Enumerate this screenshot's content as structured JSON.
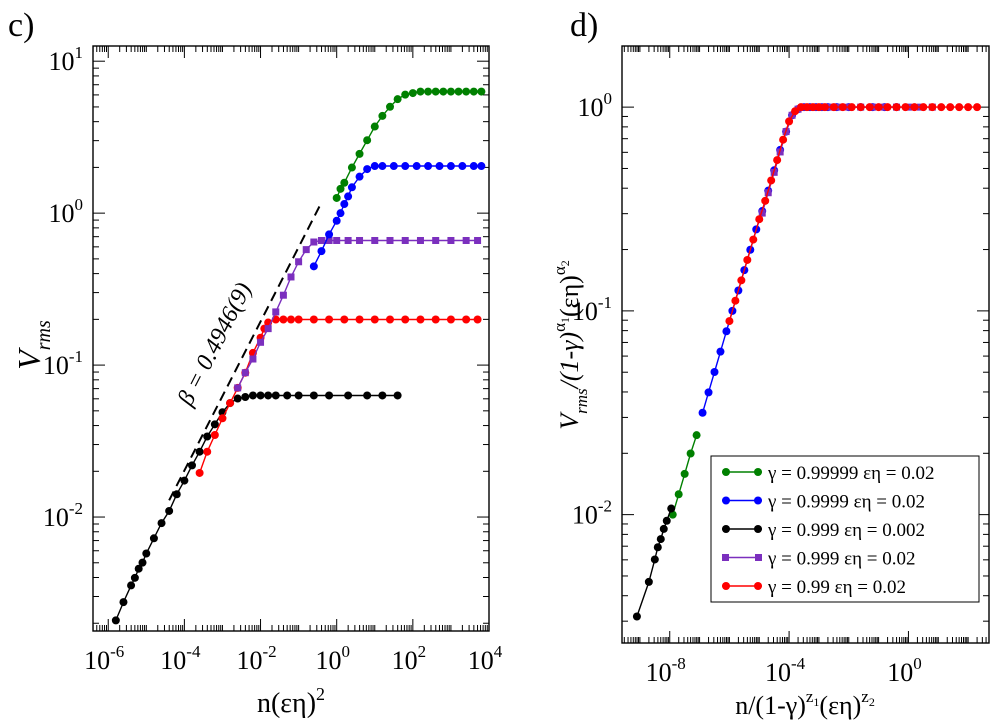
{
  "chart_data": [
    {
      "type": "line",
      "panel_label": "c)",
      "xscale": "log",
      "yscale": "log",
      "xlabel_text": "n(εη)",
      "xlabel_sup": "2",
      "ylabel_text": "V",
      "ylabel_sub": "rms",
      "xlim": [
        -6.4,
        4
      ],
      "ylim": [
        -2.75,
        1.1
      ],
      "xticks": [
        {
          "exp": -6,
          "base": "10",
          "sup": "-6"
        },
        {
          "exp": -4,
          "base": "10",
          "sup": "-4"
        },
        {
          "exp": -2,
          "base": "10",
          "sup": "-2"
        },
        {
          "exp": 0,
          "base": "10",
          "sup": "0"
        },
        {
          "exp": 2,
          "base": "10",
          "sup": "2"
        },
        {
          "exp": 4,
          "base": "10",
          "sup": "4"
        }
      ],
      "yticks": [
        {
          "exp": -2,
          "base": "10",
          "sup": "-2"
        },
        {
          "exp": -1,
          "base": "10",
          "sup": "-1"
        },
        {
          "exp": 0,
          "base": "10",
          "sup": "0"
        },
        {
          "exp": 1,
          "base": "10",
          "sup": "1"
        }
      ],
      "annotation": "β = 0.4946(9)",
      "fit_line": {
        "log_x": [
          -4.4,
          -0.4
        ],
        "log_y": [
          -1.89,
          0.07
        ],
        "style": "dashed"
      },
      "series": [
        {
          "name": "γ = 0.999 εη = 0.002",
          "color": "#000000",
          "marker": "circle",
          "log_x": [
            -5.8,
            -5.6,
            -5.4,
            -5.3,
            -5.2,
            -5.1,
            -5.0,
            -4.8,
            -4.6,
            -4.4,
            -4.2,
            -4.0,
            -3.8,
            -3.6,
            -3.4,
            -3.2,
            -3.0,
            -2.8,
            -2.6,
            -2.4,
            -2.2,
            -2.0,
            -1.8,
            -1.6,
            -1.3,
            -1.0,
            -0.6,
            -0.2,
            0.3,
            0.8,
            1.2,
            1.6
          ],
          "log_y": [
            -2.68,
            -2.56,
            -2.45,
            -2.4,
            -2.34,
            -2.3,
            -2.24,
            -2.14,
            -2.04,
            -1.96,
            -1.85,
            -1.76,
            -1.66,
            -1.57,
            -1.47,
            -1.39,
            -1.31,
            -1.25,
            -1.22,
            -1.21,
            -1.2,
            -1.2,
            -1.2,
            -1.2,
            -1.2,
            -1.2,
            -1.2,
            -1.2,
            -1.2,
            -1.2,
            -1.2,
            -1.2
          ]
        },
        {
          "name": "γ = 0.99 εη = 0.02",
          "color": "#ff0000",
          "marker": "circle",
          "log_x": [
            -3.6,
            -3.4,
            -3.2,
            -3.0,
            -2.8,
            -2.6,
            -2.4,
            -2.2,
            -2.0,
            -1.9,
            -1.8,
            -1.6,
            -1.4,
            -1.2,
            -1.0,
            -0.6,
            -0.2,
            0.2,
            0.6,
            1.0,
            1.4,
            1.8,
            2.2,
            2.6,
            3.0,
            3.4,
            3.7
          ],
          "log_y": [
            -1.71,
            -1.57,
            -1.46,
            -1.35,
            -1.25,
            -1.15,
            -1.05,
            -0.92,
            -0.82,
            -0.76,
            -0.72,
            -0.7,
            -0.7,
            -0.7,
            -0.7,
            -0.7,
            -0.7,
            -0.7,
            -0.7,
            -0.7,
            -0.7,
            -0.7,
            -0.7,
            -0.7,
            -0.7,
            -0.7,
            -0.7
          ]
        },
        {
          "name": "γ = 0.999 εη = 0.02",
          "color": "#7b2fbe",
          "marker": "square",
          "log_x": [
            -2.6,
            -2.4,
            -2.2,
            -2.0,
            -1.8,
            -1.6,
            -1.4,
            -1.2,
            -1.0,
            -0.8,
            -0.6,
            -0.4,
            -0.2,
            0.0,
            0.3,
            0.6,
            1.0,
            1.4,
            1.8,
            2.2,
            2.6,
            3.0,
            3.4,
            3.7
          ],
          "log_y": [
            -1.15,
            -1.05,
            -0.96,
            -0.85,
            -0.76,
            -0.65,
            -0.54,
            -0.42,
            -0.32,
            -0.24,
            -0.19,
            -0.18,
            -0.18,
            -0.18,
            -0.18,
            -0.18,
            -0.18,
            -0.18,
            -0.18,
            -0.18,
            -0.18,
            -0.18,
            -0.18,
            -0.18
          ]
        },
        {
          "name": "γ = 0.9999 εη = 0.02",
          "color": "#0000ff",
          "marker": "circle",
          "log_x": [
            -0.6,
            -0.4,
            -0.2,
            0.0,
            0.1,
            0.2,
            0.3,
            0.4,
            0.6,
            0.8,
            1.0,
            1.2,
            1.5,
            1.8,
            2.1,
            2.4,
            2.7,
            3.0,
            3.3,
            3.6,
            3.8
          ],
          "log_y": [
            -0.35,
            -0.25,
            -0.14,
            -0.05,
            0.0,
            0.06,
            0.11,
            0.17,
            0.24,
            0.29,
            0.31,
            0.31,
            0.31,
            0.31,
            0.31,
            0.31,
            0.31,
            0.31,
            0.31,
            0.31,
            0.31
          ]
        },
        {
          "name": "γ = 0.99999 εη = 0.02",
          "color": "#008000",
          "marker": "circle",
          "log_x": [
            0.0,
            0.1,
            0.2,
            0.4,
            0.6,
            0.8,
            1.0,
            1.2,
            1.4,
            1.6,
            1.8,
            2.0,
            2.2,
            2.4,
            2.6,
            2.8,
            3.0,
            3.2,
            3.4,
            3.6,
            3.8
          ],
          "log_y": [
            0.1,
            0.16,
            0.2,
            0.3,
            0.39,
            0.48,
            0.57,
            0.64,
            0.7,
            0.75,
            0.78,
            0.79,
            0.8,
            0.8,
            0.8,
            0.8,
            0.8,
            0.8,
            0.8,
            0.8,
            0.8
          ]
        }
      ]
    },
    {
      "type": "line",
      "panel_label": "d)",
      "xscale": "log",
      "yscale": "log",
      "xlabel_text": "n/(1-γ)",
      "xlabel_sup1": "z",
      "xlabel_sub1": "1",
      "xlabel_mid": "(εη)",
      "xlabel_sup2": "z",
      "xlabel_sub2": "2",
      "ylabel_text": "V",
      "ylabel_sub": "rms",
      "ylabel_rest": "/(1-γ)",
      "ylabel_sup1": "α",
      "ylabel_sub1": "1",
      "ylabel_mid": "(εη)",
      "ylabel_sup2": "α",
      "ylabel_sub2": "2",
      "xlim": [
        -9.6,
        2.7
      ],
      "ylim": [
        -2.63,
        0.3
      ],
      "xticks": [
        {
          "exp": -8,
          "base": "10",
          "sup": "-8"
        },
        {
          "exp": -4,
          "base": "10",
          "sup": "-4"
        },
        {
          "exp": 0,
          "base": "10",
          "sup": "0"
        }
      ],
      "yticks": [
        {
          "exp": -2,
          "base": "10",
          "sup": "-2"
        },
        {
          "exp": -1,
          "base": "10",
          "sup": "-1"
        },
        {
          "exp": 0,
          "base": "10",
          "sup": "0"
        }
      ],
      "legend_position": "lower-right",
      "series": [
        {
          "name": "γ = 0.99999 εη = 0.02",
          "color": "#008000",
          "marker": "circle",
          "log_x": [
            -7.9,
            -7.7,
            -7.5,
            -7.3,
            -7.1
          ],
          "log_y": [
            -2.0,
            -1.9,
            -1.8,
            -1.7,
            -1.61
          ]
        },
        {
          "name": "γ = 0.9999 εη = 0.02",
          "color": "#0000ff",
          "marker": "circle",
          "log_x": [
            -6.9,
            -6.7,
            -6.5,
            -6.3,
            -6.1,
            -5.9,
            -5.7,
            -5.5,
            -5.3,
            -5.1,
            -4.9,
            -4.7,
            -4.5,
            -4.3,
            -4.1,
            -3.9,
            -3.7,
            -3.5,
            -3.3,
            -3.1,
            -2.9,
            -2.7,
            -2.4,
            -2.0,
            -1.6,
            -1.2,
            -0.8,
            -0.4
          ],
          "log_y": [
            -1.5,
            -1.4,
            -1.3,
            -1.2,
            -1.1,
            -1.0,
            -0.9,
            -0.8,
            -0.7,
            -0.6,
            -0.51,
            -0.41,
            -0.31,
            -0.21,
            -0.12,
            -0.04,
            -0.01,
            0.0,
            0.0,
            0.0,
            0.0,
            0.0,
            0.0,
            0.0,
            0.0,
            0.0,
            0.0,
            0.0
          ]
        },
        {
          "name": "γ = 0.999 εη = 0.002",
          "color": "#000000",
          "marker": "circle",
          "log_x": [
            -9.1,
            -8.7,
            -8.5,
            -8.4,
            -8.3,
            -8.2,
            -8.1,
            -7.95
          ],
          "log_y": [
            -2.5,
            -2.33,
            -2.22,
            -2.16,
            -2.12,
            -2.07,
            -2.03,
            -1.97
          ]
        },
        {
          "name": "γ = 0.999 εη = 0.02",
          "color": "#7b2fbe",
          "marker": "square",
          "log_x": [
            -4.9,
            -4.7,
            -4.5,
            -4.3,
            -4.1,
            -3.9,
            -3.7,
            -3.5,
            -3.2,
            -2.9,
            -2.6,
            -2.3,
            -2.0,
            -1.6,
            -1.2,
            -0.8,
            -0.4,
            0.0,
            0.4,
            0.8
          ],
          "log_y": [
            -0.52,
            -0.42,
            -0.32,
            -0.22,
            -0.12,
            -0.04,
            -0.01,
            0.0,
            0.0,
            0.0,
            0.0,
            0.0,
            0.0,
            0.0,
            0.0,
            0.0,
            0.0,
            0.0,
            0.0,
            0.0
          ]
        },
        {
          "name": "γ = 0.99 εη = 0.02",
          "color": "#ff0000",
          "marker": "circle",
          "log_x": [
            -6.0,
            -5.8,
            -5.6,
            -5.4,
            -5.2,
            -5.0,
            -4.8,
            -4.6,
            -4.4,
            -4.2,
            -4.0,
            -3.8,
            -3.6,
            -3.4,
            -3.2,
            -3.0,
            -2.8,
            -2.5,
            -2.2,
            -1.9,
            -1.6,
            -1.3,
            -1.0,
            -0.7,
            -0.4,
            -0.1,
            0.2,
            0.5,
            0.8,
            1.1,
            1.4,
            1.7,
            2.0,
            2.3
          ],
          "log_y": [
            -1.05,
            -0.95,
            -0.85,
            -0.75,
            -0.65,
            -0.55,
            -0.46,
            -0.36,
            -0.26,
            -0.16,
            -0.07,
            -0.02,
            0.0,
            0.0,
            0.0,
            0.0,
            0.0,
            0.0,
            0.0,
            0.0,
            0.0,
            0.0,
            0.0,
            0.0,
            0.0,
            0.0,
            0.0,
            0.0,
            0.0,
            0.0,
            0.0,
            0.0,
            0.0,
            0.0
          ]
        }
      ]
    }
  ]
}
